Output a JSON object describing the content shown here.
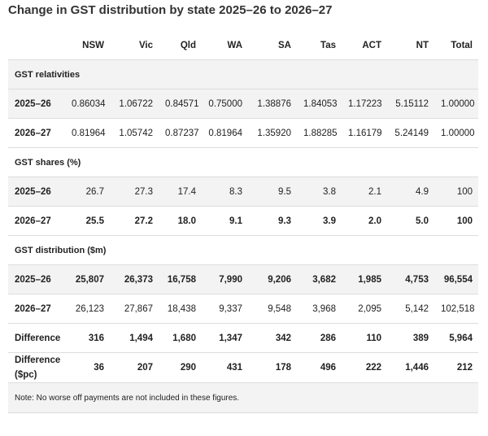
{
  "title": "Change in GST distribution by state 2025–26 to 2026–27",
  "table": {
    "header": [
      "NSW",
      "Vic",
      "Qld",
      "WA",
      "SA",
      "Tas",
      "ACT",
      "NT",
      "Total"
    ],
    "sections": [
      {
        "title": "GST relativities",
        "rows": [
          {
            "label": "2025–26",
            "values": [
              "0.86034",
              "1.06722",
              "0.84571",
              "0.75000",
              "1.38876",
              "1.84053",
              "1.17223",
              "5.15112",
              "1.00000"
            ]
          },
          {
            "label": "2026–27",
            "values": [
              "0.81964",
              "1.05742",
              "0.87237",
              "0.81964",
              "1.35920",
              "1.88285",
              "1.16179",
              "5.24149",
              "1.00000"
            ]
          }
        ]
      },
      {
        "title": "GST shares (%)",
        "rows": [
          {
            "label": "2025–26",
            "values": [
              "26.7",
              "27.3",
              "17.4",
              "8.3",
              "9.5",
              "3.8",
              "2.1",
              "4.9",
              "100"
            ]
          },
          {
            "label": "2026–27",
            "values": [
              "25.5",
              "27.2",
              "18.0",
              "9.1",
              "9.3",
              "3.9",
              "2.0",
              "5.0",
              "100"
            ]
          }
        ]
      },
      {
        "title": "GST distribution ($m)",
        "rows": [
          {
            "label": "2025–26",
            "values": [
              "25,807",
              "26,373",
              "16,758",
              "7,990",
              "9,206",
              "3,682",
              "1,985",
              "4,753",
              "96,554"
            ]
          },
          {
            "label": "2026–27",
            "values": [
              "26,123",
              "27,867",
              "18,438",
              "9,337",
              "9,548",
              "3,968",
              "2,095",
              "5,142",
              "102,518"
            ]
          },
          {
            "label": "Difference",
            "values": [
              "316",
              "1,494",
              "1,680",
              "1,347",
              "342",
              "286",
              "110",
              "389",
              "5,964"
            ]
          },
          {
            "label": "Difference ($pc)",
            "values": [
              "36",
              "207",
              "290",
              "431",
              "178",
              "496",
              "222",
              "1,446",
              "212"
            ]
          }
        ]
      }
    ],
    "note": "Note: No worse off payments are not included in these figures."
  }
}
